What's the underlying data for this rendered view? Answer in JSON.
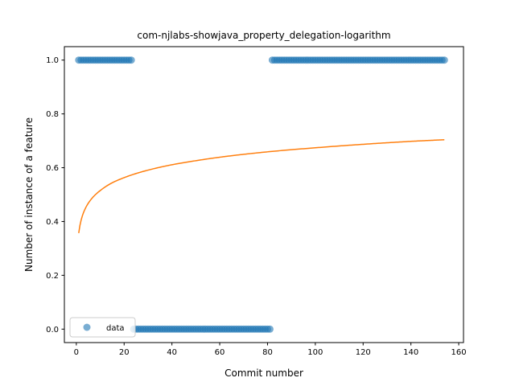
{
  "chart_data": {
    "type": "scatter",
    "title": "com-njlabs-showjava_property_delegation-logarithm",
    "xlabel": "Commit number",
    "ylabel": "Number of instance of a feature",
    "xlim": [
      -5,
      162
    ],
    "ylim": [
      -0.05,
      1.05
    ],
    "xticks": [
      0,
      20,
      40,
      60,
      80,
      100,
      120,
      140,
      160
    ],
    "yticks": [
      0.0,
      0.2,
      0.4,
      0.6,
      0.8,
      1.0
    ],
    "ytick_labels": [
      "0.0",
      "0.2",
      "0.4",
      "0.6",
      "0.8",
      "1.0"
    ],
    "grid": false,
    "legend": {
      "position": "lower-left",
      "entries": [
        "data"
      ]
    },
    "colors": {
      "data": "#1f77b4",
      "fit": "#ff7f0e"
    },
    "series": [
      {
        "name": "data",
        "kind": "scatter",
        "segments": [
          {
            "x_from": 1,
            "x_to": 23,
            "y": 1.0
          },
          {
            "x_from": 24,
            "x_to": 81,
            "y": 0.0
          },
          {
            "x_from": 82,
            "x_to": 154,
            "y": 1.0
          }
        ]
      },
      {
        "kind": "line",
        "x_from": 1,
        "x_to": 154,
        "y": [
          [
            1,
            0.357
          ],
          [
            2,
            0.405
          ],
          [
            3,
            0.433
          ],
          [
            5,
            0.468
          ],
          [
            8,
            0.5
          ],
          [
            10,
            0.515
          ],
          [
            15,
            0.544
          ],
          [
            20,
            0.563
          ],
          [
            30,
            0.591
          ],
          [
            40,
            0.611
          ],
          [
            50,
            0.626
          ],
          [
            60,
            0.639
          ],
          [
            80,
            0.659
          ],
          [
            100,
            0.674
          ],
          [
            120,
            0.687
          ],
          [
            140,
            0.698
          ],
          [
            154,
            0.704
          ]
        ]
      }
    ]
  }
}
